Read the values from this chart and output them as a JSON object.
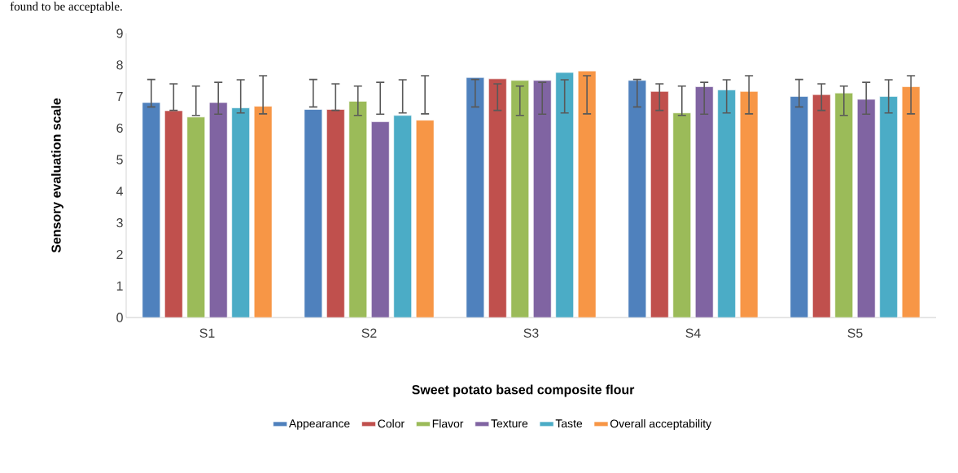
{
  "chart_data": {
    "type": "bar",
    "xlabel": "Sweet potato based composite flour",
    "ylabel": "Sensory evaluation scale",
    "annotations": [
      "found to be acceptable."
    ],
    "categories": [
      "S1",
      "S2",
      "S3",
      "S4",
      "S5"
    ],
    "series": [
      {
        "name": "Appearance",
        "color": "#4f81bd",
        "values": [
          6.81,
          6.59,
          7.6,
          7.51,
          7.0
        ],
        "errors": [
          [
            6.67,
            7.54
          ],
          [
            6.67,
            7.54
          ],
          [
            6.67,
            7.54
          ],
          [
            6.67,
            7.54
          ],
          [
            6.67,
            7.54
          ]
        ]
      },
      {
        "name": "Color",
        "color": "#c0504d",
        "values": [
          6.55,
          6.59,
          7.56,
          7.16,
          7.06
        ],
        "errors": [
          [
            6.56,
            7.4
          ],
          [
            6.56,
            7.4
          ],
          [
            6.56,
            7.4
          ],
          [
            6.56,
            7.4
          ],
          [
            6.56,
            7.4
          ]
        ]
      },
      {
        "name": "Flavor",
        "color": "#9bbb59",
        "values": [
          6.35,
          6.85,
          7.51,
          6.48,
          7.11
        ],
        "errors": [
          [
            6.4,
            7.33
          ],
          [
            6.4,
            7.33
          ],
          [
            6.4,
            7.33
          ],
          [
            6.4,
            7.33
          ],
          [
            6.4,
            7.33
          ]
        ]
      },
      {
        "name": "Texture",
        "color": "#8064a2",
        "values": [
          6.81,
          6.2,
          7.51,
          7.31,
          6.91
        ],
        "errors": [
          [
            6.44,
            7.45
          ],
          [
            6.44,
            7.45
          ],
          [
            6.44,
            7.45
          ],
          [
            6.44,
            7.45
          ],
          [
            6.44,
            7.45
          ]
        ]
      },
      {
        "name": "Taste",
        "color": "#4bacc6",
        "values": [
          6.64,
          6.4,
          7.76,
          7.21,
          7.0
        ],
        "errors": [
          [
            6.48,
            7.53
          ],
          [
            6.48,
            7.53
          ],
          [
            6.48,
            7.53
          ],
          [
            6.48,
            7.53
          ],
          [
            6.48,
            7.53
          ]
        ]
      },
      {
        "name": "Overall acceptability",
        "color": "#f79646",
        "values": [
          6.69,
          6.25,
          7.81,
          7.16,
          7.31
        ],
        "errors": [
          [
            6.45,
            7.66
          ],
          [
            6.45,
            7.66
          ],
          [
            6.45,
            7.66
          ],
          [
            6.45,
            7.66
          ],
          [
            6.45,
            7.66
          ]
        ]
      }
    ],
    "ylim": [
      0,
      9
    ],
    "yticks": [
      0,
      1,
      2,
      3,
      4,
      5,
      6,
      7,
      8,
      9
    ],
    "grid": false,
    "legend": "bottom"
  }
}
